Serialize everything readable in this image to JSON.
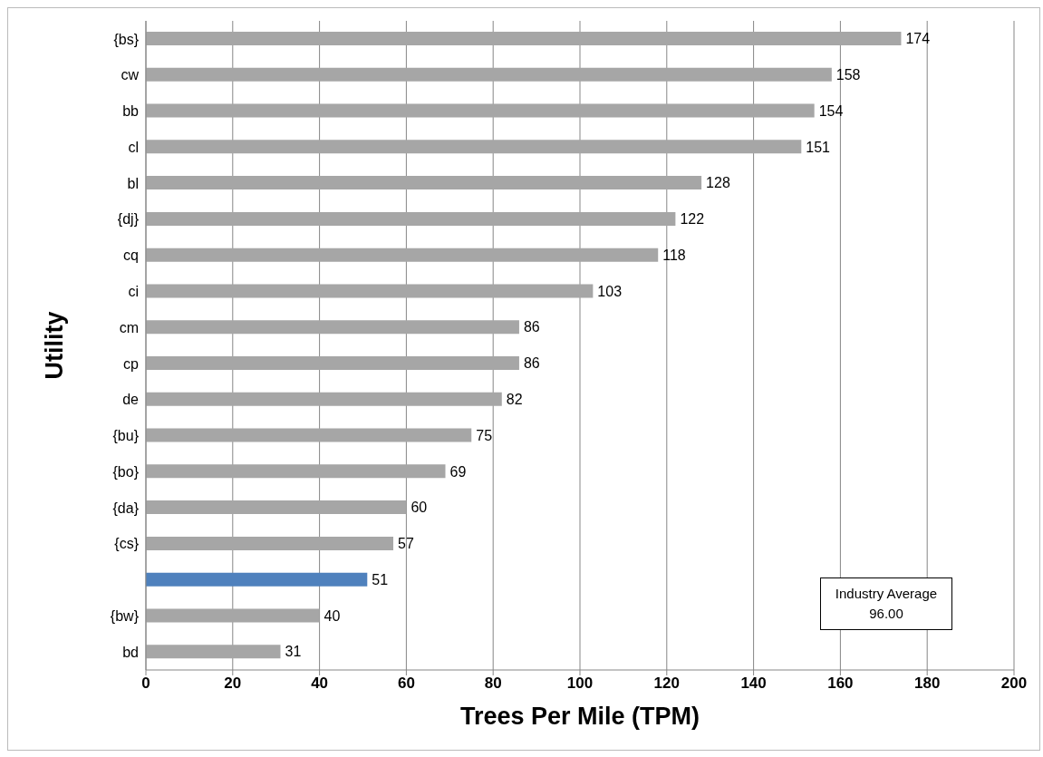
{
  "chart_data": {
    "type": "bar",
    "orientation": "horizontal",
    "xlabel": "Trees Per Mile (TPM)",
    "ylabel": "Utility",
    "categories": [
      "{bs}",
      "cw",
      "bb",
      "cl",
      "bl",
      "{dj}",
      "cq",
      "ci",
      "cm",
      "cp",
      "de",
      "{bu}",
      "{bo}",
      "{da}",
      "{cs}",
      null,
      "{bw}",
      "bd"
    ],
    "values": [
      174,
      158,
      154,
      151,
      128,
      122,
      118,
      103,
      86,
      86,
      82,
      75,
      69,
      60,
      57,
      51,
      40,
      31
    ],
    "colors": [
      "#a6a6a6",
      "#a6a6a6",
      "#a6a6a6",
      "#a6a6a6",
      "#a6a6a6",
      "#a6a6a6",
      "#a6a6a6",
      "#a6a6a6",
      "#a6a6a6",
      "#a6a6a6",
      "#a6a6a6",
      "#a6a6a6",
      "#a6a6a6",
      "#a6a6a6",
      "#a6a6a6",
      "#4f81bd",
      "#a6a6a6",
      "#a6a6a6"
    ],
    "xlim": [
      0,
      200
    ],
    "xticks": [
      0,
      20,
      40,
      60,
      80,
      100,
      120,
      140,
      160,
      180,
      200
    ],
    "grid": "x",
    "data_labels": true,
    "annotations": [
      "Industry Average 96.00"
    ]
  }
}
